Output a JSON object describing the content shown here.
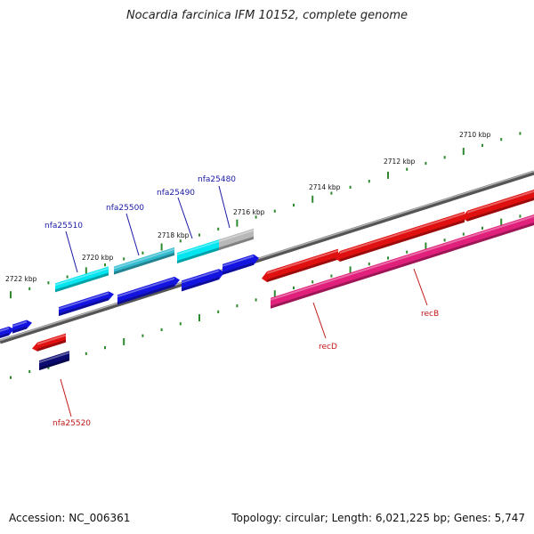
{
  "header": {
    "title": "Nocardia farcinica IFM 10152, complete genome"
  },
  "footer": {
    "accession": "Accession: NC_006361",
    "info": "Topology: circular; Length: 6,021,225 bp; Genes: 5,747"
  },
  "scale_labels": [
    "2710 kbp",
    "2712 kbp",
    "2714 kbp",
    "2716 kbp",
    "2718 kbp",
    "2720 kbp",
    "2722 kbp"
  ],
  "gene_labels": {
    "nfa25480": "nfa25480",
    "nfa25490": "nfa25490",
    "nfa25500": "nfa25500",
    "nfa25510": "nfa25510",
    "nfa25520": "nfa25520",
    "recD": "recD",
    "recB": "recB"
  },
  "colors": {
    "backbone": "#7a7a7a",
    "tick": "#2f8a2f",
    "cds_blue": "#1414e0",
    "cds_navy": "#0a0a70",
    "cds_red": "#e01010",
    "cds_pink": "#e0207a",
    "cds_cyan": "#00e5f0",
    "cds_grey": "#b8b8b8",
    "label_blue": "#1a1aa6",
    "label_red": "#c21818"
  }
}
